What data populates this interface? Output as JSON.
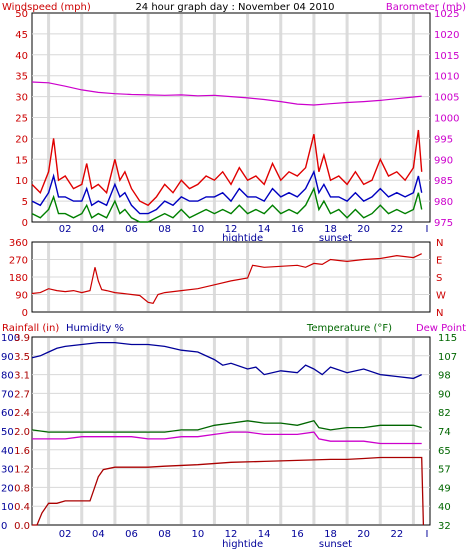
{
  "chart_data": [
    {
      "type": "line",
      "title": "24 hour graph day : November 04 2010",
      "left_axis_label": "Windspeed (mph)",
      "right_axis_label": "Barometer (mb)",
      "left_ylim": [
        0,
        50
      ],
      "left_ticks": [
        "0",
        "5",
        "10",
        "15",
        "20",
        "25",
        "30",
        "35",
        "40",
        "45",
        "50"
      ],
      "right_ylim": [
        975,
        1025
      ],
      "right_ticks": [
        "975",
        "980",
        "985",
        "990",
        "995",
        "1000",
        "1005",
        "1010",
        "1015",
        "1020",
        "1025"
      ],
      "x_ticks": [
        "02",
        "04",
        "06",
        "08",
        "10",
        "12",
        "14",
        "16",
        "18",
        "20",
        "22"
      ],
      "end_marker": "I",
      "annotations": [
        "hightide",
        "sunset"
      ],
      "colors": {
        "gust": "#e00000",
        "average": "#0000c0",
        "min": "#008000",
        "barometer": "#cc00cc"
      },
      "series": [
        {
          "key": "barometer",
          "x": [
            0,
            1,
            2,
            3,
            4,
            5,
            6,
            7,
            8,
            9,
            10,
            11,
            12,
            13,
            14,
            15,
            16,
            17,
            18,
            19,
            20,
            21,
            22,
            23,
            23.5
          ],
          "values": [
            1008.5,
            1008.3,
            1007.5,
            1006.6,
            1006.0,
            1005.7,
            1005.5,
            1005.4,
            1005.3,
            1005.4,
            1005.2,
            1005.3,
            1005.0,
            1004.7,
            1004.3,
            1003.8,
            1003.2,
            1003.0,
            1003.3,
            1003.6,
            1003.8,
            1004.1,
            1004.5,
            1004.9,
            1005.1
          ]
        },
        {
          "key": "gust",
          "x": [
            0,
            0.5,
            1,
            1.3,
            1.6,
            2,
            2.5,
            3,
            3.3,
            3.6,
            4,
            4.5,
            5,
            5.3,
            5.6,
            6,
            6.5,
            7,
            7.5,
            8,
            8.5,
            9,
            9.5,
            10,
            10.5,
            11,
            11.5,
            12,
            12.5,
            13,
            13.5,
            14,
            14.5,
            15,
            15.5,
            16,
            16.5,
            17,
            17.3,
            17.6,
            18,
            18.5,
            19,
            19.5,
            20,
            20.5,
            21,
            21.5,
            22,
            22.5,
            23,
            23.3,
            23.5
          ],
          "values": [
            9,
            7,
            12,
            20,
            10,
            11,
            8,
            9,
            14,
            8,
            9,
            7,
            15,
            10,
            12,
            8,
            5,
            4,
            6,
            9,
            7,
            10,
            8,
            9,
            11,
            10,
            12,
            9,
            13,
            10,
            11,
            9,
            14,
            10,
            12,
            11,
            13,
            21,
            12,
            16,
            10,
            11,
            9,
            12,
            9,
            10,
            15,
            11,
            12,
            10,
            13,
            22,
            12
          ]
        },
        {
          "key": "average",
          "x": [
            0,
            0.5,
            1,
            1.3,
            1.6,
            2,
            2.5,
            3,
            3.3,
            3.6,
            4,
            4.5,
            5,
            5.3,
            5.6,
            6,
            6.5,
            7,
            7.5,
            8,
            8.5,
            9,
            9.5,
            10,
            10.5,
            11,
            11.5,
            12,
            12.5,
            13,
            13.5,
            14,
            14.5,
            15,
            15.5,
            16,
            16.5,
            17,
            17.3,
            17.6,
            18,
            18.5,
            19,
            19.5,
            20,
            20.5,
            21,
            21.5,
            22,
            22.5,
            23,
            23.3,
            23.5
          ],
          "values": [
            5,
            4,
            7,
            11,
            6,
            6,
            5,
            5,
            8,
            4,
            5,
            4,
            9,
            6,
            7,
            4,
            2,
            2,
            3,
            5,
            4,
            6,
            5,
            5,
            6,
            6,
            7,
            5,
            8,
            6,
            6,
            5,
            8,
            6,
            7,
            6,
            8,
            12,
            7,
            9,
            6,
            6,
            5,
            7,
            5,
            6,
            8,
            6,
            7,
            6,
            7,
            11,
            7
          ]
        },
        {
          "key": "min",
          "x": [
            0,
            0.5,
            1,
            1.3,
            1.6,
            2,
            2.5,
            3,
            3.3,
            3.6,
            4,
            4.5,
            5,
            5.3,
            5.6,
            6,
            6.5,
            7,
            7.5,
            8,
            8.5,
            9,
            9.5,
            10,
            10.5,
            11,
            11.5,
            12,
            12.5,
            13,
            13.5,
            14,
            14.5,
            15,
            15.5,
            16,
            16.5,
            17,
            17.3,
            17.6,
            18,
            18.5,
            19,
            19.5,
            20,
            20.5,
            21,
            21.5,
            22,
            22.5,
            23,
            23.3,
            23.5
          ],
          "values": [
            2,
            1,
            3,
            6,
            2,
            2,
            1,
            2,
            4,
            1,
            2,
            1,
            5,
            2,
            3,
            1,
            0,
            0,
            1,
            2,
            1,
            3,
            1,
            2,
            3,
            2,
            3,
            2,
            4,
            2,
            3,
            2,
            4,
            2,
            3,
            2,
            4,
            8,
            3,
            5,
            2,
            3,
            1,
            3,
            1,
            2,
            4,
            2,
            3,
            2,
            3,
            7,
            3
          ]
        }
      ]
    },
    {
      "type": "line",
      "left_ylim": [
        0,
        360
      ],
      "left_ticks": [
        "0",
        "90",
        "180",
        "270",
        "360"
      ],
      "right_ticks": [
        "N",
        "E",
        "S",
        "W",
        "N"
      ],
      "colors": {
        "direction": "#cc0000"
      },
      "series": [
        {
          "key": "direction",
          "x": [
            0,
            0.5,
            1,
            1.5,
            2,
            2.5,
            3,
            3.5,
            3.8,
            4,
            4.2,
            4.5,
            5,
            5.5,
            6,
            6.5,
            7,
            7.3,
            7.6,
            8,
            8.5,
            9,
            10,
            11,
            12,
            13,
            13.3,
            14,
            15,
            16,
            16.5,
            17,
            17.5,
            18,
            18.5,
            19,
            20,
            21,
            22,
            23,
            23.5
          ],
          "values": [
            95,
            100,
            120,
            110,
            105,
            110,
            100,
            110,
            230,
            160,
            115,
            110,
            100,
            95,
            90,
            85,
            50,
            45,
            90,
            100,
            105,
            110,
            120,
            140,
            160,
            175,
            240,
            230,
            235,
            240,
            230,
            250,
            245,
            270,
            265,
            260,
            270,
            275,
            290,
            280,
            300
          ]
        }
      ]
    },
    {
      "type": "line",
      "rain_axis_label": "Rainfall (in)",
      "humidity_axis_label": "Humidity %",
      "right_axis_label": "Temperature (°F)",
      "right_axis_label2": "Dew Point",
      "humidity_ticks": [
        "0",
        "10",
        "20",
        "30",
        "40",
        "50",
        "60",
        "70",
        "80",
        "90",
        "100"
      ],
      "rain_ticks": [
        "0.0",
        "0.4",
        "0.8",
        "1.2",
        "1.6",
        "2.0",
        "2.4",
        "2.7",
        "3.1",
        "3.5",
        "3.9"
      ],
      "rain_ylim": [
        0,
        3.9
      ],
      "right_ylim": [
        32,
        115
      ],
      "right_ticks": [
        "32",
        "40",
        "49",
        "57",
        "65",
        "74",
        "82",
        "90",
        "98",
        "107",
        "115"
      ],
      "colors": {
        "humidity": "#000099",
        "temperature": "#006600",
        "dewpoint": "#cc00cc",
        "rain": "#aa0000"
      },
      "series": [
        {
          "key": "humidity",
          "x": [
            0,
            0.5,
            1,
            1.5,
            2,
            3,
            4,
            5,
            6,
            7,
            8,
            9,
            10,
            11,
            11.5,
            12,
            13,
            13.5,
            14,
            15,
            16,
            16.5,
            17,
            17.5,
            18,
            19,
            20,
            21,
            22,
            23,
            23.5
          ],
          "values": [
            89,
            90,
            92,
            94,
            95,
            96,
            97,
            97,
            96,
            96,
            95,
            93,
            92,
            88,
            85,
            86,
            83,
            84,
            80,
            82,
            81,
            85,
            83,
            80,
            84,
            81,
            83,
            80,
            79,
            78,
            80
          ]
        },
        {
          "key": "temperature",
          "x": [
            0,
            1,
            2,
            3,
            4,
            5,
            6,
            7,
            8,
            9,
            10,
            11,
            12,
            13,
            14,
            15,
            16,
            17,
            17.3,
            18,
            19,
            20,
            21,
            22,
            23,
            23.5
          ],
          "values": [
            74,
            73,
            73,
            73,
            73,
            73,
            73,
            73,
            73,
            74,
            74,
            76,
            77,
            78,
            77,
            77,
            76,
            78,
            75,
            74,
            75,
            75,
            76,
            76,
            76,
            75
          ]
        },
        {
          "key": "dewpoint",
          "x": [
            0,
            1,
            2,
            3,
            4,
            5,
            6,
            7,
            8,
            9,
            10,
            11,
            12,
            13,
            14,
            15,
            16,
            17,
            17.3,
            18,
            19,
            20,
            21,
            22,
            23,
            23.5
          ],
          "values": [
            70,
            70,
            70,
            71,
            71,
            71,
            71,
            70,
            70,
            71,
            71,
            72,
            73,
            73,
            72,
            72,
            72,
            73,
            70,
            69,
            69,
            69,
            68,
            68,
            68,
            68
          ]
        },
        {
          "key": "rain",
          "x": [
            0,
            0.3,
            0.6,
            1,
            1.5,
            2,
            3,
            3.5,
            3.8,
            4,
            4.3,
            5,
            6,
            7,
            8,
            10,
            12,
            14,
            16,
            18,
            19,
            20,
            21,
            22,
            23,
            23.5,
            23.6
          ],
          "values": [
            0,
            0,
            0.25,
            0.45,
            0.45,
            0.5,
            0.5,
            0.5,
            0.8,
            1.0,
            1.15,
            1.2,
            1.2,
            1.2,
            1.22,
            1.25,
            1.3,
            1.32,
            1.34,
            1.36,
            1.36,
            1.38,
            1.4,
            1.4,
            1.4,
            1.4,
            0
          ]
        }
      ]
    }
  ]
}
